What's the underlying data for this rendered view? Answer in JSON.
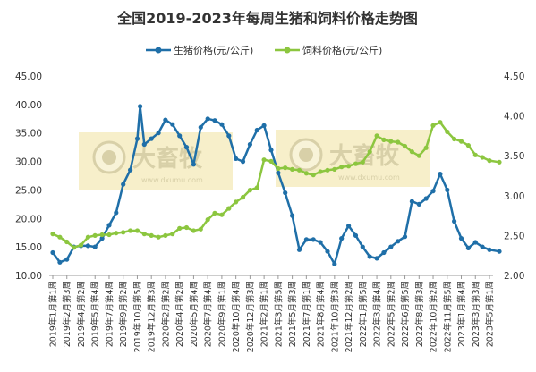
{
  "colors": {
    "pig": "#1f6fa8",
    "feed": "#8cc63f",
    "watermark_bg": "#f4eab8",
    "watermark_text": "#d8d0a8",
    "axis": "#999999",
    "text": "#333333"
  },
  "watermark": {
    "brand": "大畜牧",
    "site": "www.dxumu.com",
    "icon": "pig-face-logo"
  },
  "chart_data": {
    "type": "line",
    "title": "全国2019-2023年每周生猪和饲料价格走势图",
    "legend": {
      "position": "top-center",
      "items": [
        "生猪价格(元/公斤)",
        "饲料价格(元/公斤)"
      ]
    },
    "grid": false,
    "x_tick_labels": [
      "2019年1月第1周",
      "2019年2月第3周",
      "2019年4月第2周",
      "2019年5月第4周",
      "2019年7月第4周",
      "2019年9月第2周",
      "2019年10月第5周",
      "2019年12月第3周",
      "2020年2月第2周",
      "2020年4月第2周",
      "2020年5月第4周",
      "2020年7月第4周",
      "2020年9月第1周",
      "2020年10月第4周",
      "2020年12月第3周",
      "2021年2月第1周",
      "2021年3月第5周",
      "2021年5月第3周",
      "2021年7月第1周",
      "2021年8月第4周",
      "2021年10月第3周",
      "2021年12月第2周",
      "2022年1月第5周",
      "2022年3月第4周",
      "2022年5月第2周",
      "2022年6月第5周",
      "2022年8月第3周",
      "2022年10月第2周",
      "2022年11月第5周",
      "2023年1月第4周",
      "2023年3月第3周",
      "2023年5月第1周"
    ],
    "y_left": {
      "label": "",
      "range": [
        10,
        45
      ],
      "ticks": [
        "10.00",
        "15.00",
        "20.00",
        "25.00",
        "30.00",
        "35.00",
        "40.00",
        "45.00"
      ]
    },
    "y_right": {
      "label": "",
      "range": [
        2.0,
        4.5
      ],
      "ticks": [
        "2.00",
        "2.50",
        "3.00",
        "3.50",
        "4.00",
        "4.50"
      ]
    },
    "series": [
      {
        "name": "生猪价格(元/公斤)",
        "axis": "left",
        "marker": "circle",
        "points": [
          [
            0,
            14.0
          ],
          [
            0.5,
            12.3
          ],
          [
            1,
            12.8
          ],
          [
            1.5,
            15.0
          ],
          [
            2,
            15.2
          ],
          [
            2.5,
            15.2
          ],
          [
            3,
            15.0
          ],
          [
            3.5,
            16.5
          ],
          [
            4,
            18.8
          ],
          [
            4.5,
            21.0
          ],
          [
            5,
            26.0
          ],
          [
            5.5,
            28.5
          ],
          [
            6,
            34.0
          ],
          [
            6.2,
            39.7
          ],
          [
            6.5,
            33.0
          ],
          [
            7,
            34.0
          ],
          [
            7.5,
            35.0
          ],
          [
            8,
            37.3
          ],
          [
            8.5,
            36.5
          ],
          [
            9,
            34.5
          ],
          [
            9.5,
            32.5
          ],
          [
            10,
            29.5
          ],
          [
            10.5,
            36.0
          ],
          [
            11,
            37.5
          ],
          [
            11.5,
            37.2
          ],
          [
            12,
            36.5
          ],
          [
            12.5,
            34.5
          ],
          [
            13,
            30.5
          ],
          [
            13.5,
            30.0
          ],
          [
            14,
            33.0
          ],
          [
            14.5,
            35.5
          ],
          [
            15,
            36.3
          ],
          [
            15.5,
            32.0
          ],
          [
            16,
            28.0
          ],
          [
            16.5,
            24.5
          ],
          [
            17,
            20.5
          ],
          [
            17.5,
            14.5
          ],
          [
            18,
            16.3
          ],
          [
            18.5,
            16.3
          ],
          [
            19,
            15.8
          ],
          [
            19.5,
            14.2
          ],
          [
            20,
            12.0
          ],
          [
            20.5,
            16.5
          ],
          [
            21,
            18.7
          ],
          [
            21.5,
            17.0
          ],
          [
            22,
            15.0
          ],
          [
            22.5,
            13.3
          ],
          [
            23,
            13.0
          ],
          [
            23.5,
            14.0
          ],
          [
            24,
            15.0
          ],
          [
            24.5,
            16.0
          ],
          [
            25,
            16.8
          ],
          [
            25.5,
            23.0
          ],
          [
            26,
            22.5
          ],
          [
            26.5,
            23.5
          ],
          [
            27,
            24.8
          ],
          [
            27.5,
            27.8
          ],
          [
            28,
            25.0
          ],
          [
            28.5,
            19.5
          ],
          [
            29,
            16.5
          ],
          [
            29.5,
            14.8
          ],
          [
            30,
            15.8
          ],
          [
            30.5,
            15.0
          ],
          [
            31,
            14.5
          ],
          [
            31.7,
            14.2
          ]
        ]
      },
      {
        "name": "饲料价格(元/公斤)",
        "axis": "right",
        "marker": "circle",
        "points": [
          [
            0,
            2.52
          ],
          [
            0.5,
            2.48
          ],
          [
            1,
            2.42
          ],
          [
            1.5,
            2.35
          ],
          [
            2,
            2.38
          ],
          [
            2.5,
            2.48
          ],
          [
            3,
            2.5
          ],
          [
            3.5,
            2.51
          ],
          [
            4,
            2.51
          ],
          [
            4.5,
            2.53
          ],
          [
            5,
            2.54
          ],
          [
            5.5,
            2.56
          ],
          [
            6,
            2.56
          ],
          [
            6.5,
            2.52
          ],
          [
            7,
            2.5
          ],
          [
            7.5,
            2.48
          ],
          [
            8,
            2.5
          ],
          [
            8.5,
            2.52
          ],
          [
            9,
            2.59
          ],
          [
            9.5,
            2.6
          ],
          [
            10,
            2.56
          ],
          [
            10.5,
            2.58
          ],
          [
            11,
            2.7
          ],
          [
            11.5,
            2.78
          ],
          [
            12,
            2.76
          ],
          [
            12.5,
            2.84
          ],
          [
            13,
            2.92
          ],
          [
            13.5,
            2.98
          ],
          [
            14,
            3.07
          ],
          [
            14.5,
            3.1
          ],
          [
            15,
            3.45
          ],
          [
            15.5,
            3.43
          ],
          [
            16,
            3.34
          ],
          [
            16.5,
            3.35
          ],
          [
            17,
            3.33
          ],
          [
            17.5,
            3.32
          ],
          [
            18,
            3.28
          ],
          [
            18.5,
            3.26
          ],
          [
            19,
            3.3
          ],
          [
            19.5,
            3.32
          ],
          [
            20,
            3.33
          ],
          [
            20.5,
            3.36
          ],
          [
            21,
            3.37
          ],
          [
            21.5,
            3.4
          ],
          [
            22,
            3.42
          ],
          [
            22.5,
            3.55
          ],
          [
            23,
            3.75
          ],
          [
            23.5,
            3.7
          ],
          [
            24,
            3.68
          ],
          [
            24.5,
            3.67
          ],
          [
            25,
            3.62
          ],
          [
            25.5,
            3.55
          ],
          [
            26,
            3.5
          ],
          [
            26.5,
            3.6
          ],
          [
            27,
            3.88
          ],
          [
            27.5,
            3.92
          ],
          [
            28,
            3.8
          ],
          [
            28.5,
            3.71
          ],
          [
            29,
            3.68
          ],
          [
            29.5,
            3.63
          ],
          [
            30,
            3.51
          ],
          [
            30.5,
            3.48
          ],
          [
            31,
            3.44
          ],
          [
            31.7,
            3.42
          ]
        ]
      }
    ]
  }
}
